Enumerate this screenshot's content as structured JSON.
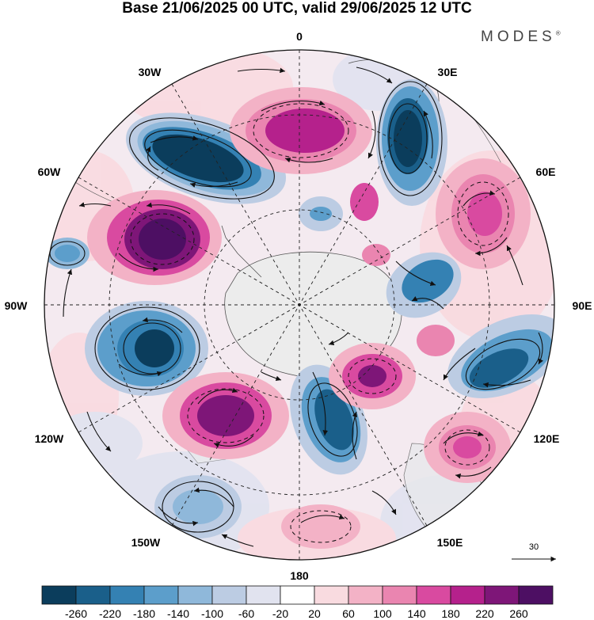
{
  "title": "Base 21/06/2025 00 UTC, valid 29/06/2025 12 UTC",
  "brand": {
    "name": "MODES",
    "mark": "®"
  },
  "longitude_labels": {
    "lon_0": "0",
    "lon_30e": "30E",
    "lon_60e": "60E",
    "lon_90e": "90E",
    "lon_120e": "120E",
    "lon_150e": "150E",
    "lon_180": "180",
    "lon_150w": "150W",
    "lon_120w": "120W",
    "lon_90w": "90W",
    "lon_60w": "60W",
    "lon_30w": "30W"
  },
  "colorbar": {
    "colors": [
      "#0b3d5c",
      "#1a5f8a",
      "#3481b3",
      "#5c9ecb",
      "#8fb8da",
      "#bccce3",
      "#e1e3ef",
      "#ffffff",
      "#f9dbe0",
      "#f3b2c6",
      "#ea85b0",
      "#d94aa0",
      "#b5218c",
      "#7e1678",
      "#4d0f63"
    ],
    "ticks": [
      "-260",
      "-220",
      "-180",
      "-140",
      "-100",
      "-60",
      "-20",
      "20",
      "60",
      "100",
      "140",
      "180",
      "220",
      "260"
    ]
  },
  "reference_vector": {
    "label": "30"
  },
  "map": {
    "projection": "south-polar-stereographic",
    "colors": {
      "land": "#ececec",
      "coast": "#555555"
    }
  }
}
